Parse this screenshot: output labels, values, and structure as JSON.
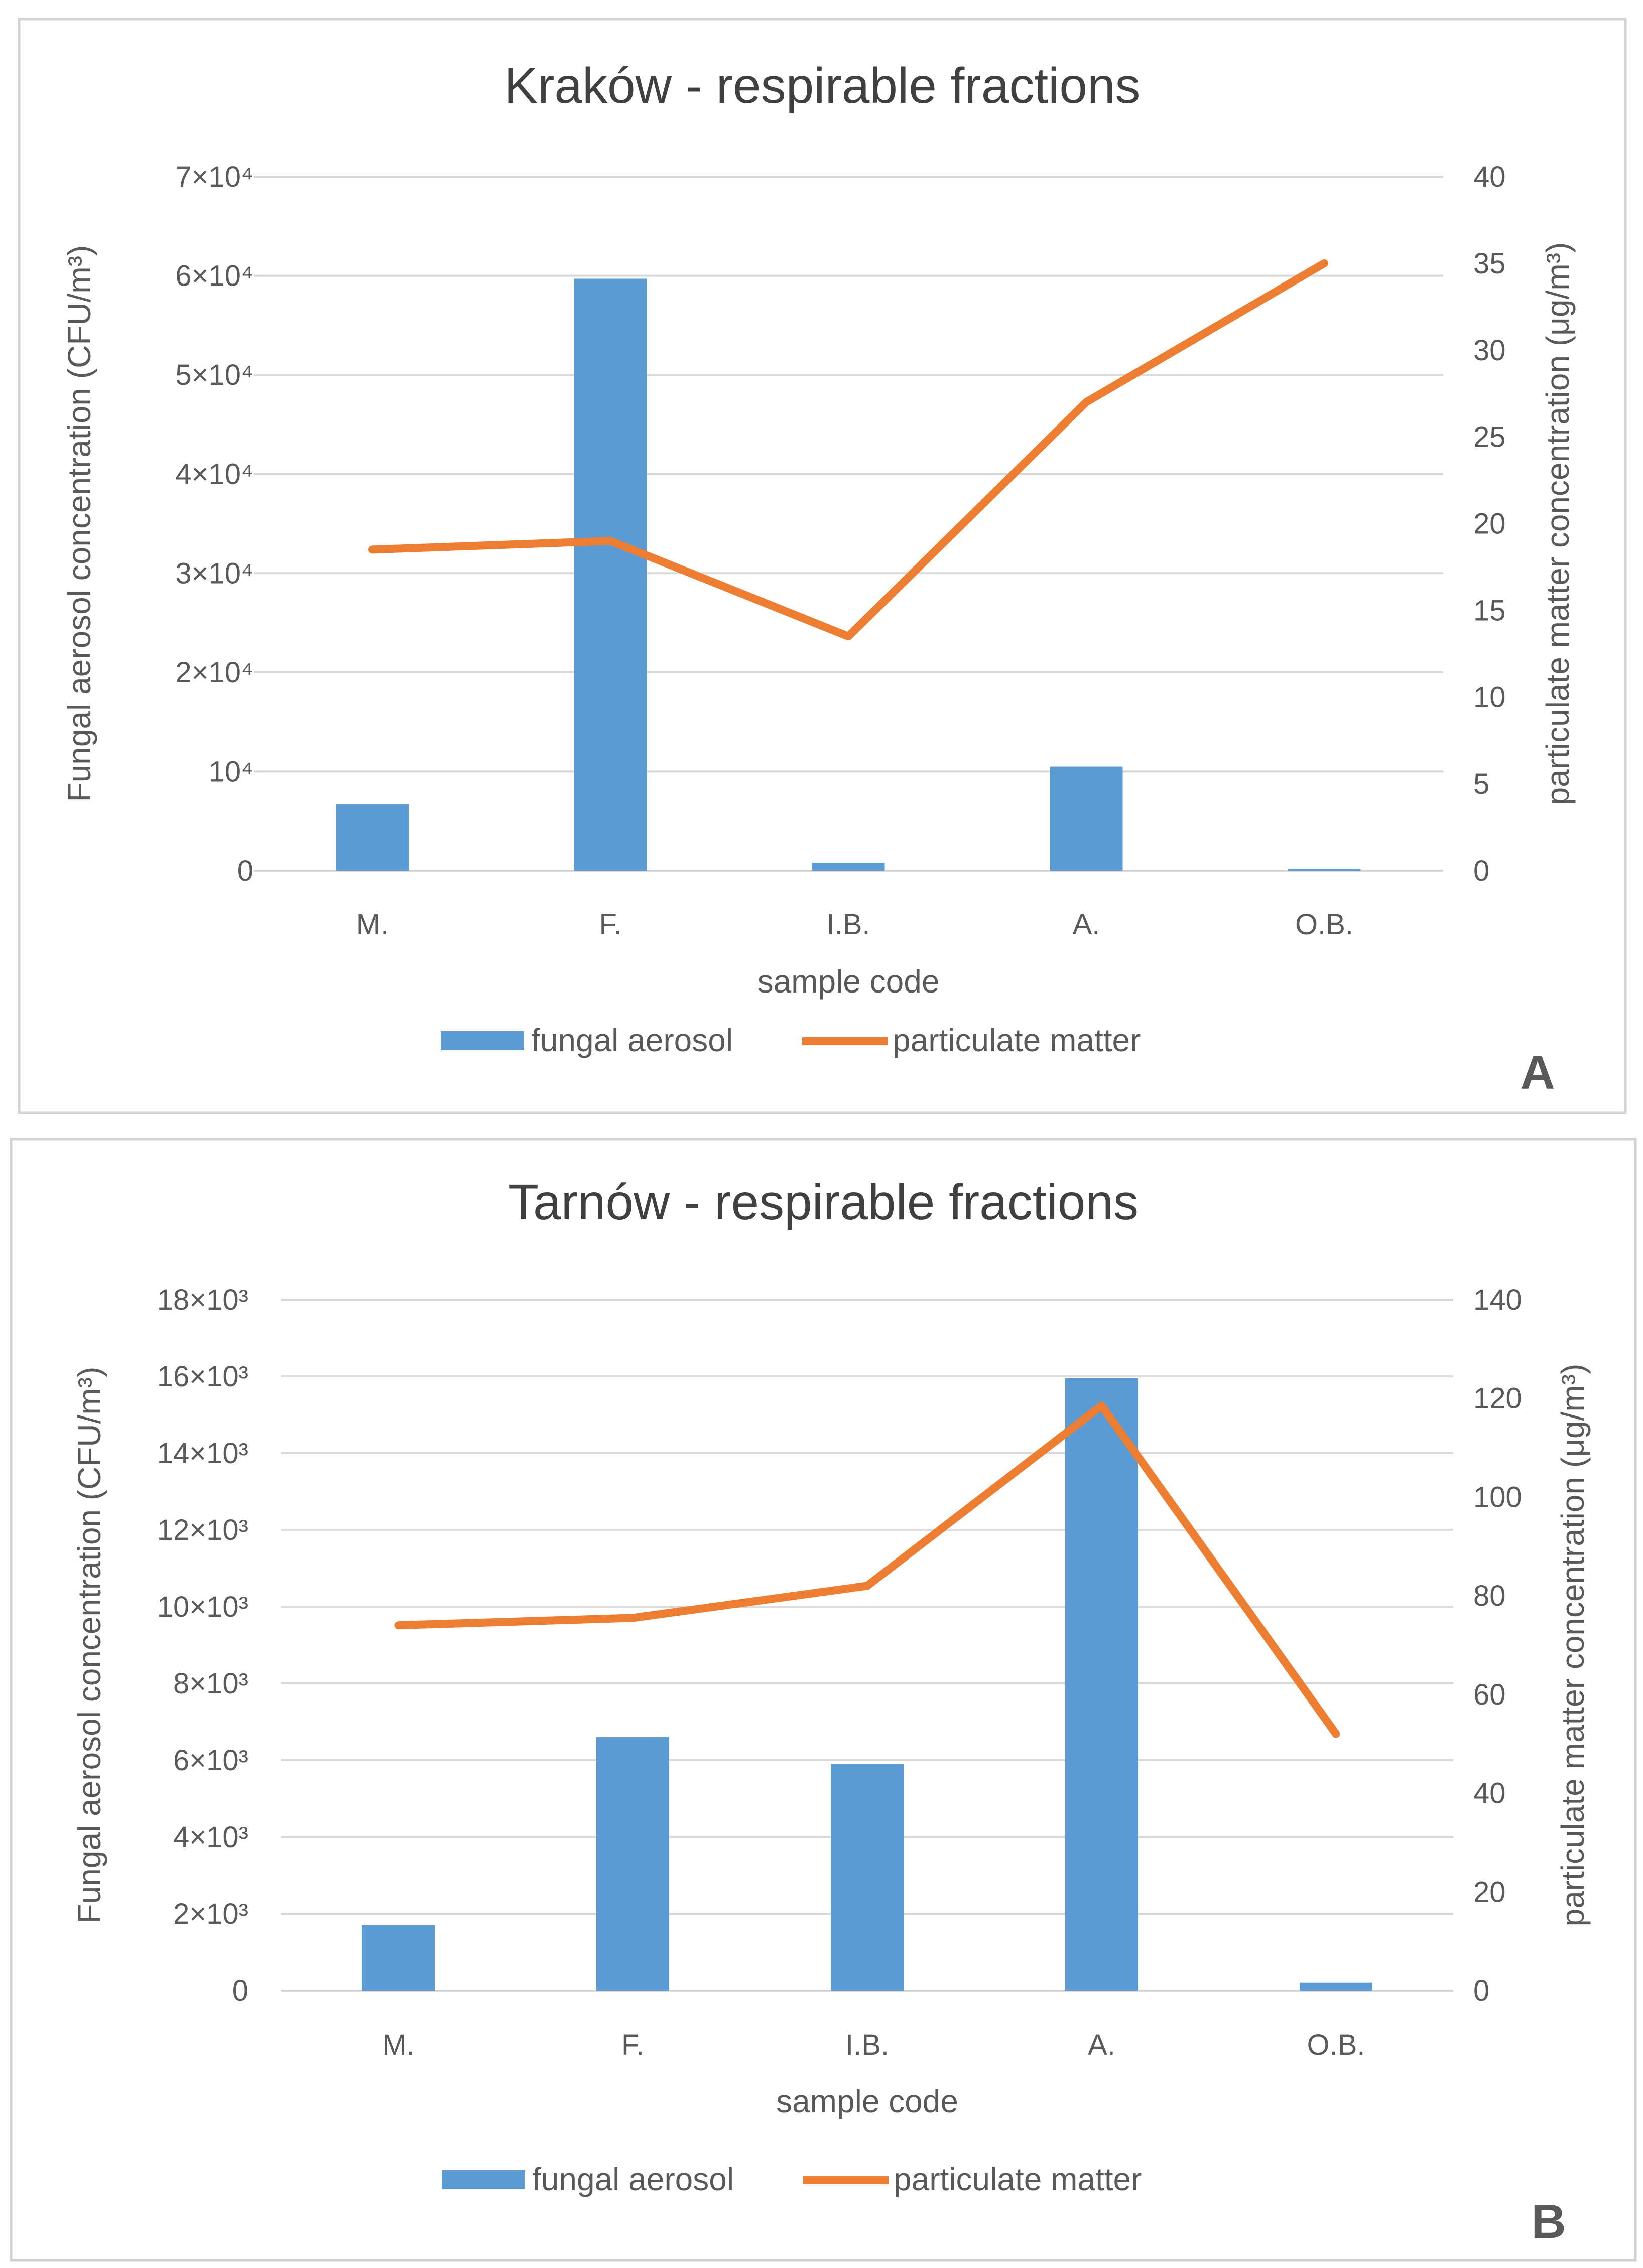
{
  "colors": {
    "bar": "#5b9bd5",
    "line": "#ed7d31",
    "grid": "#d9d9d9",
    "text": "#595959"
  },
  "chart_data": [
    {
      "type": "bar",
      "panel": "A",
      "title": "Kraków - respirable fractions",
      "categories": [
        "M.",
        "F.",
        "I.B.",
        "A.",
        "O.B."
      ],
      "xlabel": "sample code",
      "ylabel_left": "Fungal aerosol concentration (CFU/m³)",
      "ylabel_right": "particulate matter concentration (μg/m³)",
      "ylim_left": [
        0,
        70000
      ],
      "ylim_right": [
        0,
        40
      ],
      "left_ticks": [
        "0",
        "10⁴",
        "2×10⁴",
        "3×10⁴",
        "4×10⁴",
        "5×10⁴",
        "6×10⁴",
        "7×10⁴"
      ],
      "right_ticks": [
        "0",
        "5",
        "10",
        "15",
        "20",
        "25",
        "30",
        "35",
        "40"
      ],
      "series": [
        {
          "name": "fungal aerosol",
          "type": "bar",
          "axis": "left",
          "values": [
            6700,
            59700,
            800,
            10500,
            200
          ]
        },
        {
          "name": "particulate matter",
          "type": "line",
          "axis": "right",
          "values": [
            18.5,
            19.0,
            13.5,
            27.0,
            35.0
          ]
        }
      ],
      "legend": [
        "fungal aerosol",
        "particulate matter"
      ]
    },
    {
      "type": "bar",
      "panel": "B",
      "title": "Tarnów - respirable fractions",
      "categories": [
        "M.",
        "F.",
        "I.B.",
        "A.",
        "O.B."
      ],
      "xlabel": "sample code",
      "ylabel_left": "Fungal aerosol concentration (CFU/m³)",
      "ylabel_right": "particulate matter concentration (μg/m³)",
      "ylim_left": [
        0,
        18000
      ],
      "ylim_right": [
        0,
        140
      ],
      "left_ticks": [
        "0",
        "2×10³",
        "4×10³",
        "6×10³",
        "8×10³",
        "10×10³",
        "12×10³",
        "14×10³",
        "16×10³",
        "18×10³"
      ],
      "right_ticks": [
        "0",
        "20",
        "40",
        "60",
        "80",
        "100",
        "120",
        "140"
      ],
      "series": [
        {
          "name": "fungal aerosol",
          "type": "bar",
          "axis": "left",
          "values": [
            1700,
            6600,
            5900,
            15950,
            200
          ]
        },
        {
          "name": "particulate matter",
          "type": "line",
          "axis": "right",
          "values": [
            74,
            75.5,
            82,
            118.5,
            52
          ]
        }
      ],
      "legend": [
        "fungal aerosol",
        "particulate matter"
      ]
    }
  ]
}
